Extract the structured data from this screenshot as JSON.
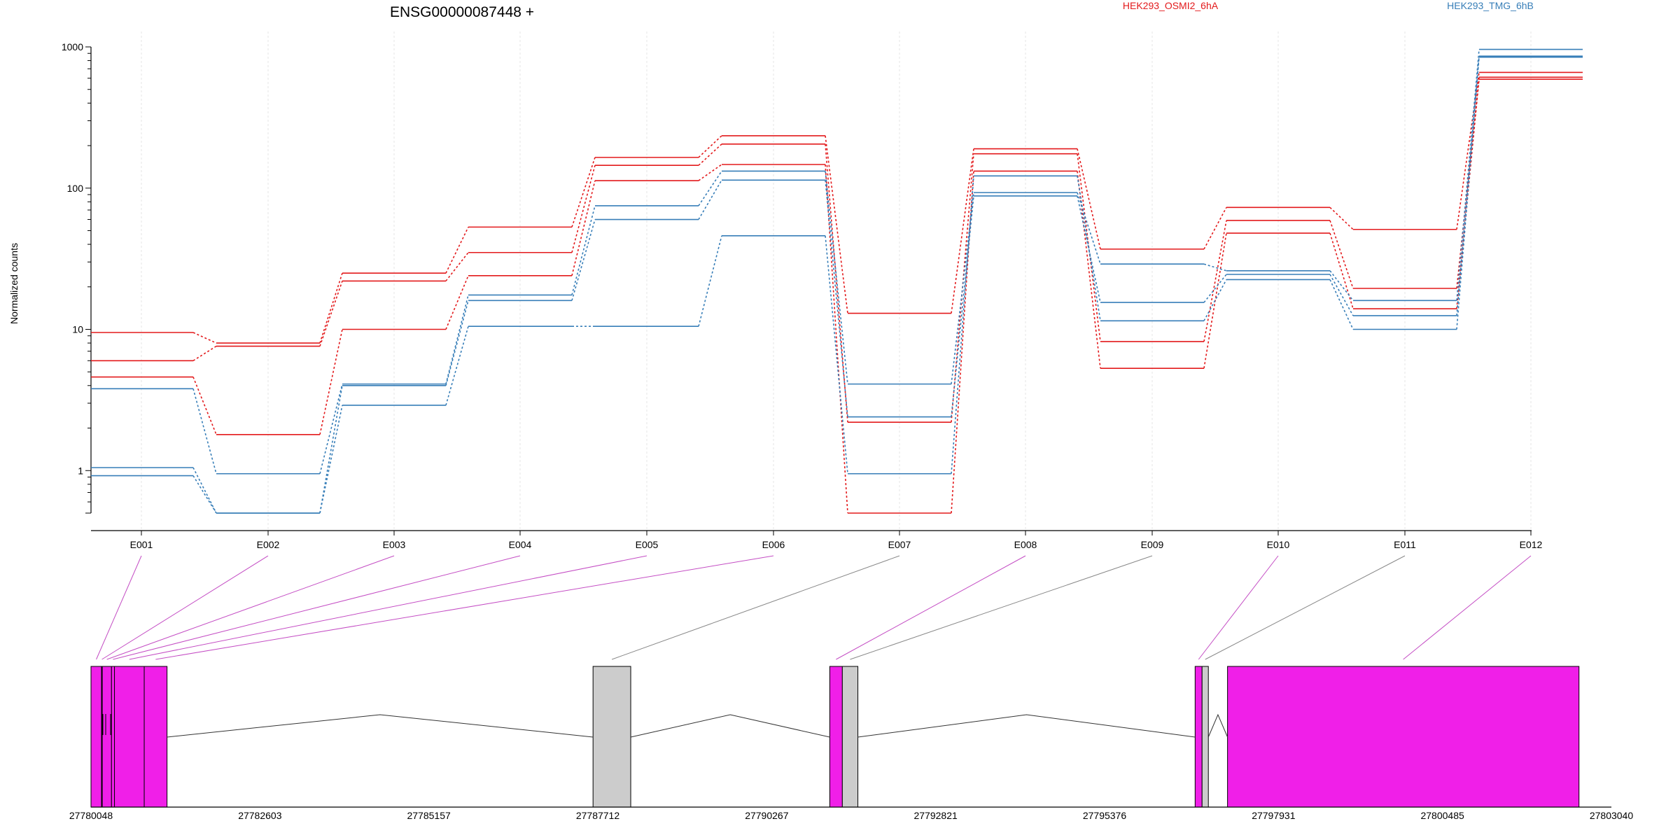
{
  "chart_data": {
    "type": "line",
    "title": "ENSG00000087448 +",
    "ylabel": "Normalized counts",
    "xlabel": "",
    "y_scale": "log",
    "ylim": [
      0.5,
      1000
    ],
    "y_ticks": [
      1,
      10,
      100,
      1000
    ],
    "y_tick_labels": [
      "1",
      "10",
      "100",
      "1000"
    ],
    "grid": "vertical gridlines at exon positions",
    "legend_placement": "top",
    "categories": [
      "E001",
      "E002",
      "E003",
      "E004",
      "E005",
      "E006",
      "E007",
      "E008",
      "E009",
      "E010",
      "E011",
      "E012"
    ],
    "groups": [
      {
        "label": "HEK293_OSMI2_6hA",
        "color": "#e31a1c"
      },
      {
        "label": "HEK293_TMG_6hB",
        "color": "#377eb8"
      }
    ],
    "series": [
      {
        "group": "HEK293_OSMI2_6hA",
        "color": "#e31a1c",
        "values": [
          9.5,
          8.0,
          25,
          53,
          165,
          235,
          13,
          190,
          37,
          73,
          51,
          660
        ]
      },
      {
        "group": "HEK293_OSMI2_6hA",
        "color": "#e31a1c",
        "values": [
          6.0,
          7.6,
          22,
          35,
          145,
          205,
          2.2,
          175,
          8.2,
          59,
          19.5,
          610
        ]
      },
      {
        "group": "HEK293_OSMI2_6hA",
        "color": "#e31a1c",
        "values": [
          4.6,
          1.8,
          10,
          24,
          113,
          147,
          0.5,
          132,
          5.3,
          48,
          14,
          590
        ]
      },
      {
        "group": "HEK293_TMG_6hB",
        "color": "#377eb8",
        "values": [
          3.8,
          0.95,
          4.1,
          17.5,
          75,
          132,
          4.1,
          93,
          29,
          26,
          16,
          960
        ]
      },
      {
        "group": "HEK293_TMG_6hB",
        "color": "#377eb8",
        "values": [
          1.05,
          0.5,
          4.0,
          16,
          60,
          114,
          2.4,
          88,
          15.5,
          24.5,
          12.5,
          860
        ]
      },
      {
        "group": "HEK293_TMG_6hB",
        "color": "#377eb8",
        "values": [
          0.92,
          0.5,
          2.9,
          10.5,
          10.5,
          46,
          0.95,
          122,
          11.5,
          22.5,
          10,
          845
        ]
      }
    ],
    "gene_model": {
      "start": 27780048,
      "end": 27803040,
      "axis_ticks": [
        27780048,
        27782603,
        27785157,
        27787712,
        27790267,
        27792821,
        27795376,
        27797931,
        27800485,
        27803040
      ],
      "axis_tick_labels": [
        "27780048",
        "27782603",
        "27785157",
        "27787712",
        "27790267",
        "27792821",
        "27795376",
        "27797931",
        "27800485",
        "27803040"
      ],
      "exons": [
        {
          "id": "E001",
          "start": 27780048,
          "end": 27780208,
          "type": "tested"
        },
        {
          "id": "E002",
          "start": 27780208,
          "end": 27780218,
          "type": "tested"
        },
        {
          "id": "E003",
          "start": 27780218,
          "end": 27780358,
          "type": "tested"
        },
        {
          "id": "E004",
          "start": 27780358,
          "end": 27780403,
          "type": "tested"
        },
        {
          "id": "E005",
          "start": 27780403,
          "end": 27780853,
          "type": "tested"
        },
        {
          "id": "E006",
          "start": 27780853,
          "end": 27781198,
          "type": "tested"
        },
        {
          "id": "E007",
          "start": 27787640,
          "end": 27788210,
          "type": "untested"
        },
        {
          "id": "E008",
          "start": 27791220,
          "end": 27791410,
          "type": "tested"
        },
        {
          "id": "E009",
          "start": 27791410,
          "end": 27791645,
          "type": "untested"
        },
        {
          "id": "E010",
          "start": 27796745,
          "end": 27796850,
          "type": "tested"
        },
        {
          "id": "E011",
          "start": 27796850,
          "end": 27796945,
          "type": "untested"
        },
        {
          "id": "E012",
          "start": 27797235,
          "end": 27802550,
          "type": "tested"
        }
      ],
      "tested_color": "#f01fe8",
      "untested_color": "#cccccc"
    }
  }
}
